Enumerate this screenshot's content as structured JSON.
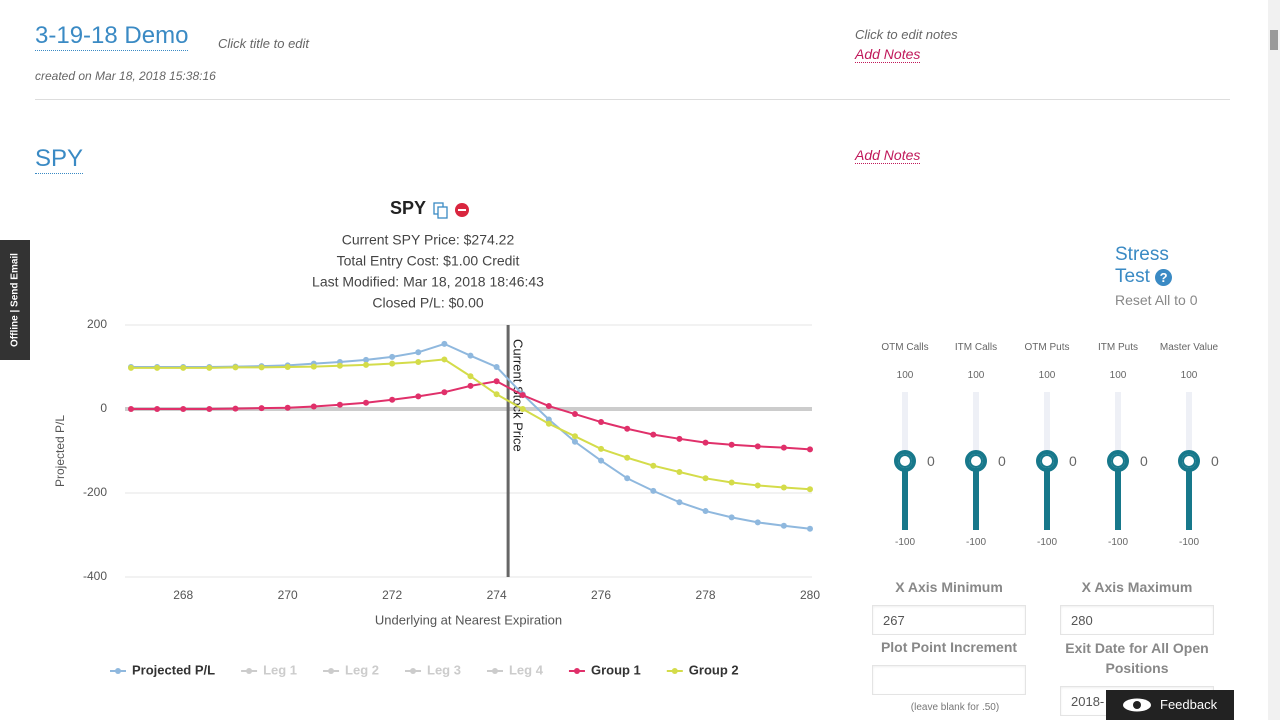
{
  "header": {
    "title": "3-19-18 Demo",
    "title_hint": "Click title to edit",
    "created": "created on Mar 18, 2018 15:38:16",
    "notes_hint": "Click to edit notes",
    "add_notes": "Add Notes"
  },
  "side_tab": "Offline | Send Email",
  "section": {
    "title": "SPY",
    "add_notes": "Add Notes"
  },
  "chart": {
    "type": "line",
    "title": "SPY",
    "info": [
      "Current SPY Price: $274.22",
      "Total Entry Cost: $1.00 Credit",
      "Last Modified: Mar 18, 2018 18:46:43",
      "Closed P/L: $0.00"
    ],
    "x_label": "Underlying at Nearest Expiration",
    "y_label": "Projected P/L",
    "xlim": [
      267,
      280
    ],
    "xticks": [
      268,
      270,
      272,
      274,
      276,
      278,
      280
    ],
    "ylim": [
      -400,
      200
    ],
    "yticks": [
      -400,
      -200,
      0,
      200
    ],
    "grid": true,
    "current_price": 274.22,
    "current_price_label": "Current Stock Price",
    "x": [
      267,
      267.5,
      268,
      268.5,
      269,
      269.5,
      270,
      270.5,
      271,
      271.5,
      272,
      272.5,
      273,
      273.5,
      274,
      274.5,
      275,
      275.5,
      276,
      276.5,
      277,
      277.5,
      278,
      278.5,
      279,
      279.5,
      280
    ],
    "series": [
      {
        "name": "Projected P/L",
        "color": "#8fb8de",
        "visible": true,
        "values": [
          100,
          100,
          100,
          100,
          101,
          102,
          104,
          108,
          112,
          117,
          124,
          135,
          155,
          127,
          100,
          35,
          -25,
          -78,
          -123,
          -165,
          -195,
          -222,
          -243,
          -258,
          -270,
          -278,
          -285
        ]
      },
      {
        "name": "Leg 1",
        "color": "#cccccc",
        "visible": false
      },
      {
        "name": "Leg 2",
        "color": "#cccccc",
        "visible": false
      },
      {
        "name": "Leg 3",
        "color": "#cccccc",
        "visible": false
      },
      {
        "name": "Leg 4",
        "color": "#cccccc",
        "visible": false
      },
      {
        "name": "Group 1",
        "color": "#e0306a",
        "visible": true,
        "values": [
          0,
          0,
          0,
          0,
          1,
          2,
          3,
          6,
          10,
          15,
          22,
          30,
          40,
          55,
          66,
          33,
          7,
          -12,
          -31,
          -47,
          -61,
          -71,
          -80,
          -85,
          -89,
          -92,
          -96
        ]
      },
      {
        "name": "Group 2",
        "color": "#d4dc4a",
        "visible": true,
        "values": [
          98,
          98,
          98,
          98,
          99,
          99,
          100,
          101,
          103,
          105,
          108,
          112,
          118,
          78,
          35,
          0,
          -35,
          -65,
          -95,
          -116,
          -135,
          -150,
          -165,
          -175,
          -182,
          -187,
          -191
        ]
      }
    ]
  },
  "stress_test": {
    "title": "Stress Test",
    "reset": "Reset All to 0",
    "sliders": [
      {
        "label": "OTM Calls",
        "max": 100,
        "min": -100,
        "value": 0
      },
      {
        "label": "ITM Calls",
        "max": 100,
        "min": -100,
        "value": 0
      },
      {
        "label": "OTM Puts",
        "max": 100,
        "min": -100,
        "value": 0
      },
      {
        "label": "ITM Puts",
        "max": 100,
        "min": -100,
        "value": 0
      },
      {
        "label": "Master Value",
        "max": 100,
        "min": -100,
        "value": 0
      }
    ]
  },
  "controls": {
    "x_min_label": "X Axis Minimum",
    "x_min": "267",
    "x_max_label": "X Axis Maximum",
    "x_max": "280",
    "increment_label": "Plot Point Increment",
    "increment": "",
    "increment_hint": "(leave blank for .50)",
    "exit_date_label": "Exit Date for All Open Positions",
    "exit_date": "2018-"
  },
  "feedback": "Feedback"
}
